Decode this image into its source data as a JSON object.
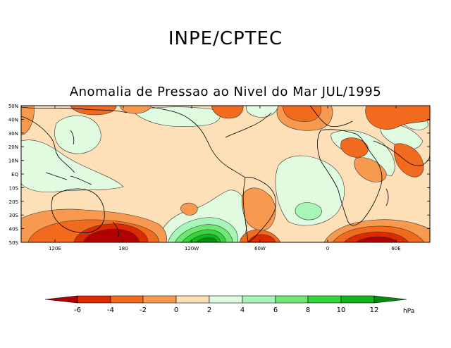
{
  "header": {
    "org": "INPE/CPTEC",
    "title": "Anomalia de Pressao ao Nivel do Mar JUL/1995"
  },
  "map": {
    "lat_labels": [
      "50N",
      "40N",
      "30N",
      "20N",
      "10N",
      "EQ",
      "10S",
      "20S",
      "30S",
      "40S",
      "50S"
    ],
    "lon_labels": [
      "120E",
      "180",
      "120W",
      "60W",
      "0",
      "60E"
    ]
  },
  "legend": {
    "ticks": [
      "-6",
      "-4",
      "-2",
      "0",
      "2",
      "4",
      "6",
      "8",
      "10",
      "12"
    ],
    "unit": "hPa",
    "colors": [
      "#b00000",
      "#dd2b00",
      "#f26a1e",
      "#f79a50",
      "#fde0b8",
      "#e0fbe0",
      "#a8f5b8",
      "#6ee873",
      "#35d43a",
      "#12b61a",
      "#068c0e",
      "#006600"
    ]
  }
}
